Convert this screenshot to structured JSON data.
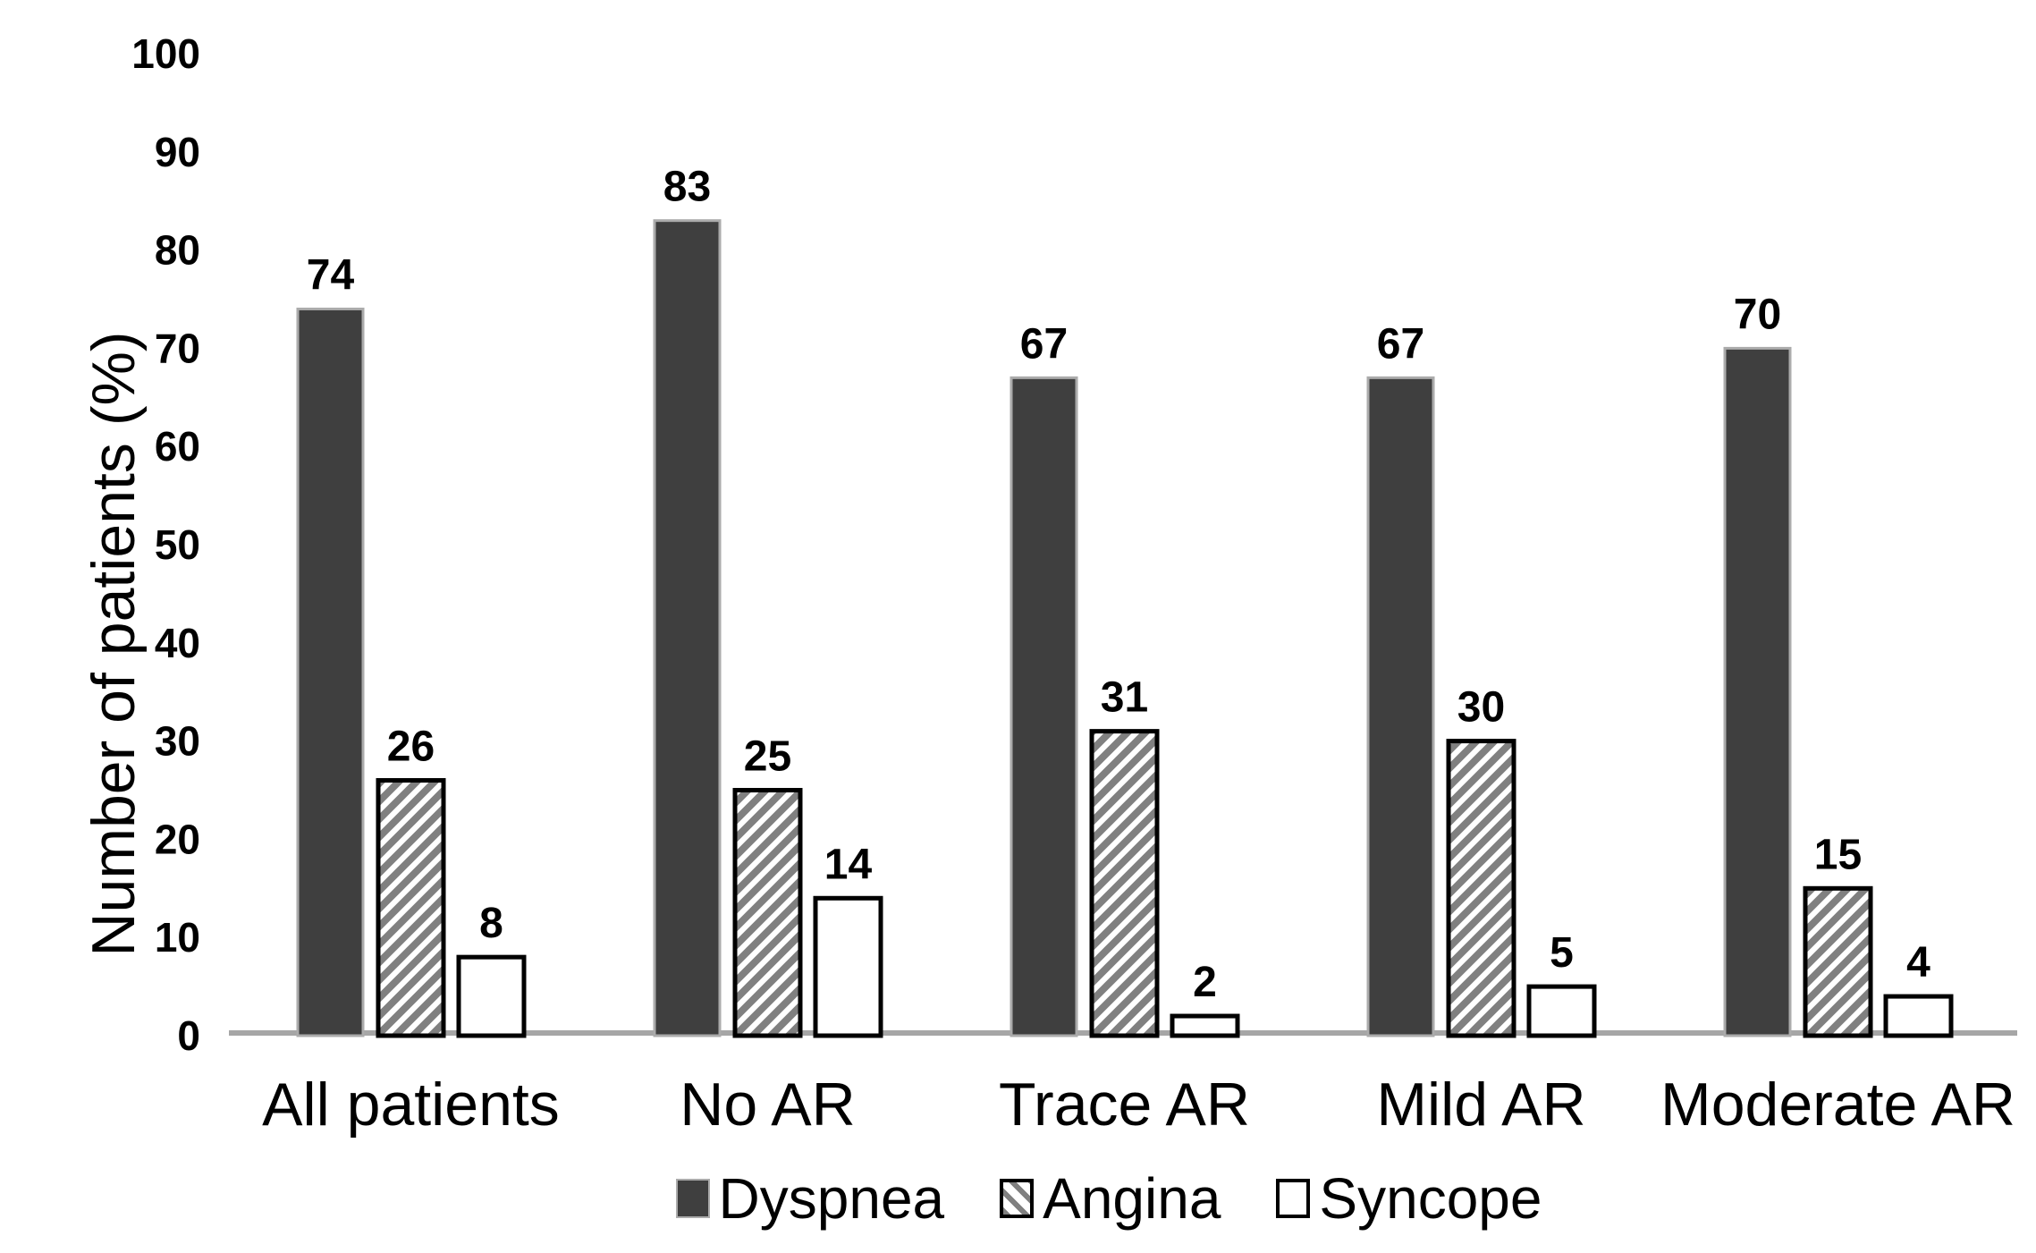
{
  "page": {
    "background": "#FFFFFF"
  },
  "chart_data": {
    "type": "bar",
    "title": "",
    "xlabel": "",
    "ylabel": "Number of patients (%)",
    "ylim": [
      0,
      100
    ],
    "yticks": [
      0,
      10,
      20,
      30,
      40,
      50,
      60,
      70,
      80,
      90,
      100
    ],
    "grid": false,
    "legend_position": "bottom",
    "value_labels_shown": true,
    "categories": [
      "All patients",
      "No AR",
      "Trace AR",
      "Mild AR",
      "Moderate AR"
    ],
    "series": [
      {
        "name": "Dyspnea",
        "style": "solid-dark",
        "values": [
          74,
          83,
          67,
          67,
          70
        ]
      },
      {
        "name": "Angina",
        "style": "hatched",
        "values": [
          26,
          25,
          31,
          30,
          15
        ]
      },
      {
        "name": "Syncope",
        "style": "outline-white",
        "values": [
          8,
          14,
          2,
          5,
          4
        ]
      }
    ]
  },
  "colors": {
    "background": "#FFFFFF",
    "text": "#000000",
    "bar_dark_fill": "#3F3F3F",
    "bar_dark_border": "#ABABAB",
    "bar_outline": "#000000",
    "hatch_stripe": "#808080",
    "hatch_background": "#FFFFFF",
    "axis_line": "#A6A6A6"
  }
}
